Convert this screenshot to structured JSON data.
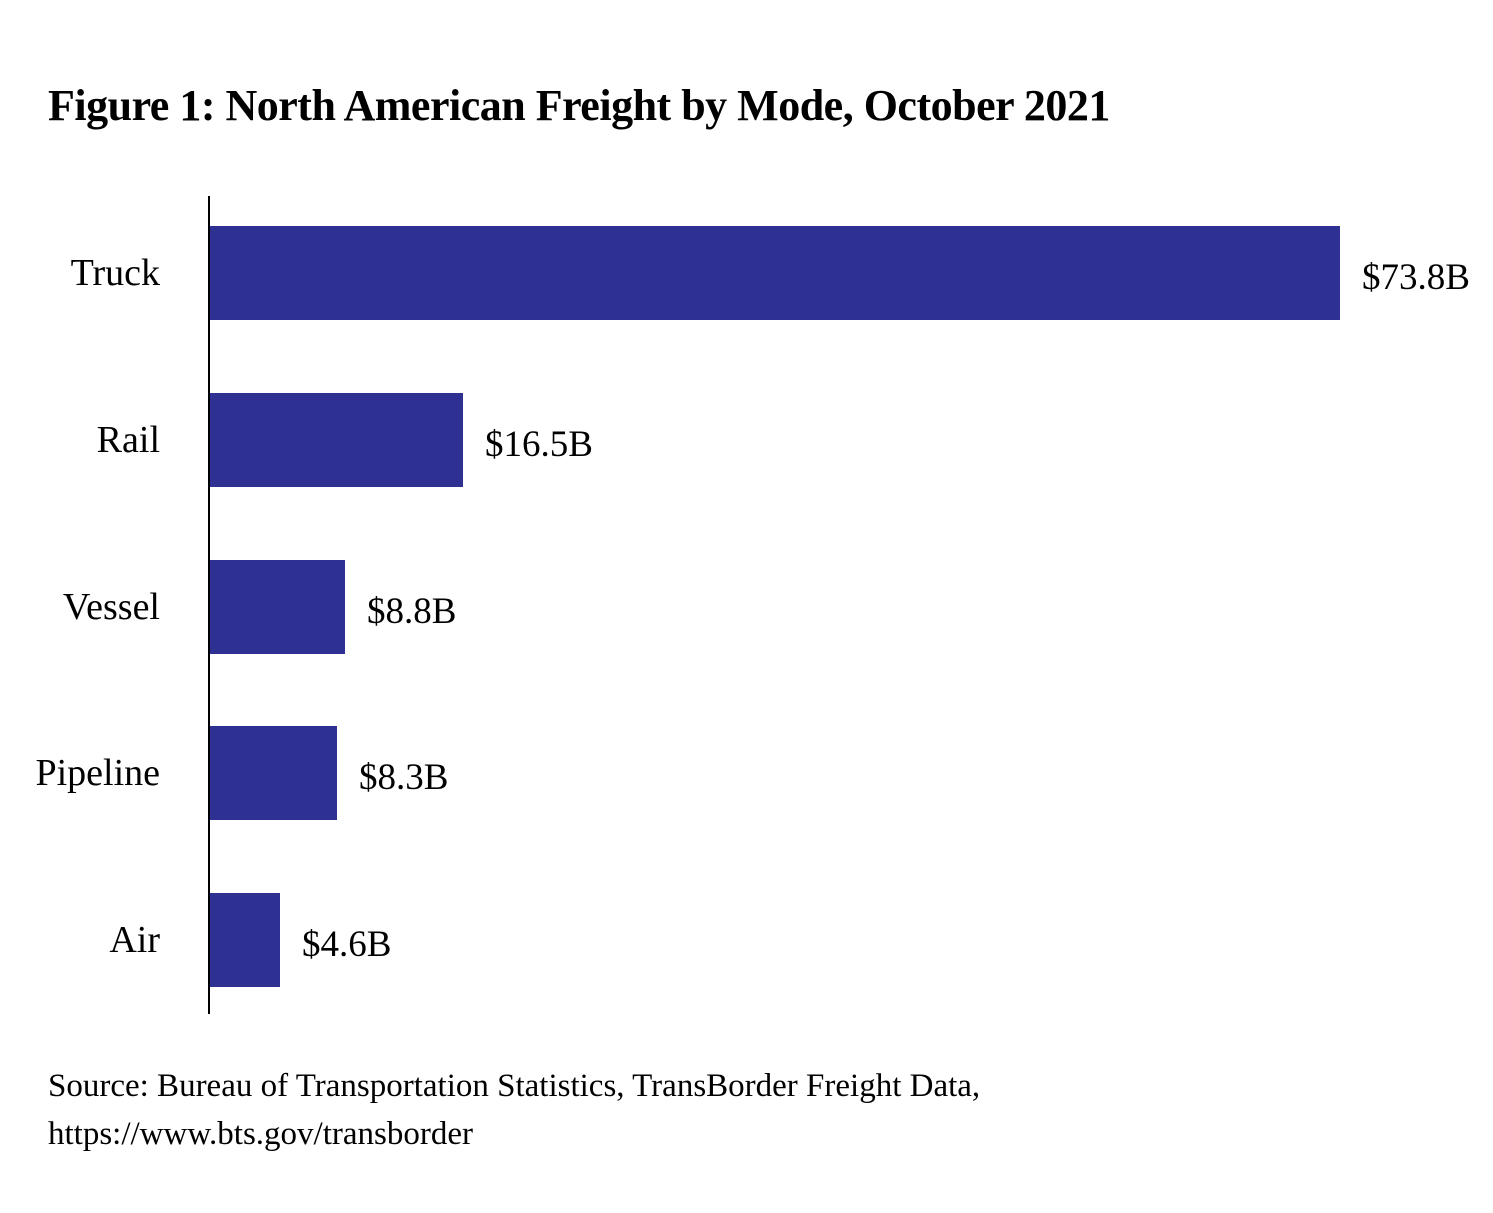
{
  "title": "Figure 1: North American Freight by Mode, October 2021",
  "source": {
    "line1": "Source: Bureau of Transportation Statistics, TransBorder Freight Data,",
    "line2": "https://www.bts.gov/transborder"
  },
  "colors": {
    "bar": "#2E3192",
    "axis": "#000000",
    "text": "#000000",
    "background": "#FFFFFF"
  },
  "chart_data": {
    "type": "bar",
    "orientation": "horizontal",
    "title": "Figure 1: North American Freight by Mode, October 2021",
    "categories": [
      "Truck",
      "Rail",
      "Vessel",
      "Pipeline",
      "Air"
    ],
    "values": [
      73.8,
      16.5,
      8.8,
      8.3,
      4.6
    ],
    "value_labels": [
      "$73.8B",
      "$16.5B",
      "$8.8B",
      "$8.3B",
      "$4.6B"
    ],
    "xlabel": "",
    "ylabel": "",
    "xlim": [
      0,
      75.8
    ],
    "grid": false,
    "legend": "none",
    "axis_shown": "y-axis line only"
  }
}
